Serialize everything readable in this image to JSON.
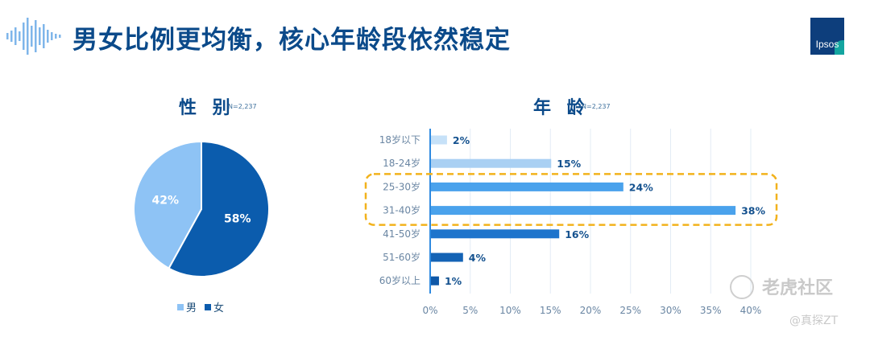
{
  "header": {
    "title": "男女比例更均衡，核心年龄段依然稳定",
    "brand": "Ipsos"
  },
  "gender": {
    "title": "性 别",
    "n_label": "N=2,237",
    "legend": [
      {
        "label": "男",
        "color": "#8ec3f5"
      },
      {
        "label": "女",
        "color": "#0b5cad"
      }
    ]
  },
  "age": {
    "title": "年 龄",
    "n_label": "N=2,237"
  },
  "watermark": {
    "main": "老虎社区",
    "sub": "@真探ZT"
  },
  "chart_data": [
    {
      "type": "pie",
      "categories": [
        "男",
        "女"
      ],
      "values": [
        42,
        58
      ],
      "labels": [
        "42%",
        "58%"
      ],
      "colors": [
        "#8ec3f5",
        "#0b5cad"
      ],
      "title": "性 别",
      "legend_placement": "bottom"
    },
    {
      "type": "bar",
      "orientation": "horizontal",
      "categories": [
        "18岁以下",
        "18-24岁",
        "25-30岁",
        "31-40岁",
        "41-50岁",
        "51-60岁",
        "60岁以上"
      ],
      "values": [
        2,
        15,
        24,
        38,
        16,
        4,
        1
      ],
      "labels": [
        "2%",
        "15%",
        "24%",
        "38%",
        "16%",
        "4%",
        "1%"
      ],
      "colors": [
        "#c6e1f8",
        "#a9d0f3",
        "#4aa2ec",
        "#4aa2ec",
        "#1e74cc",
        "#1463b5",
        "#0f58a8"
      ],
      "xlim": [
        0,
        40
      ],
      "xticks": [
        "0%",
        "5%",
        "10%",
        "15%",
        "20%",
        "25%",
        "30%",
        "35%",
        "40%"
      ],
      "title": "年 龄",
      "grid": true,
      "highlight": [
        "25-30岁",
        "31-40岁"
      ],
      "highlight_color": "#f2b21c"
    }
  ]
}
